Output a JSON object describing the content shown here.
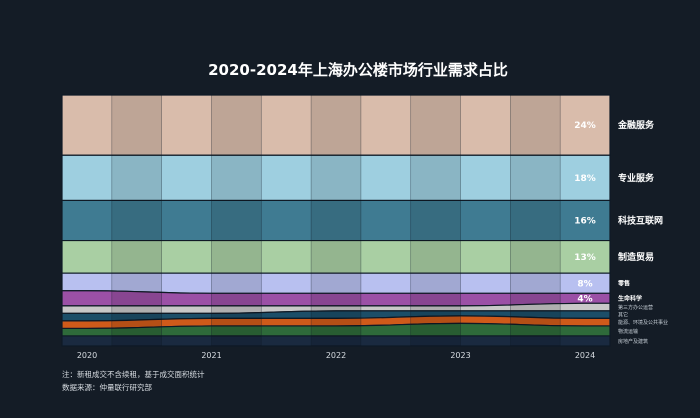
{
  "chart_data": {
    "type": "area",
    "title": "2020-2024年上海办公楼市场行业需求占比",
    "x": [
      "2020",
      "2021",
      "2022",
      "2023",
      "2024"
    ],
    "ylim": [
      0,
      100
    ],
    "series": [
      {
        "name": "金融服务",
        "color": "#d9bcab",
        "color_alt": "#b8a190",
        "values": [
          24,
          24,
          24,
          24,
          24
        ],
        "label": "24%"
      },
      {
        "name": "专业服务",
        "color": "#9ecfe0",
        "color_alt": "#4d7a90",
        "values": [
          18,
          18,
          18,
          18,
          18
        ],
        "label": "18%"
      },
      {
        "name": "科技互联网",
        "color": "#3f7b92",
        "color_alt": "#9ac6d8",
        "values": [
          16,
          16,
          16,
          16,
          16
        ],
        "label": "16%"
      },
      {
        "name": "制造贸易",
        "color": "#a9cfa3",
        "color_alt": "#8db58a",
        "values": [
          13,
          13,
          13,
          13,
          13
        ],
        "label": "13%"
      },
      {
        "name": "零售",
        "color": "#b8c0f0",
        "color_alt": "#9b50a6",
        "values": [
          7,
          8,
          8,
          8,
          8
        ],
        "label": "8%"
      },
      {
        "name": "生命科学",
        "color": "#9b50a6",
        "color_alt": "#b8c0f0",
        "values": [
          6,
          5,
          5,
          5,
          4
        ],
        "label": "4%"
      },
      {
        "name": "第三方办公运营",
        "color": "#c8c8c8",
        "color_alt": "#1c4e68",
        "values": [
          3,
          3,
          2,
          2,
          3
        ],
        "label": ""
      },
      {
        "name": "其它",
        "color": "#1c4e68",
        "color_alt": "#8a8a8a",
        "values": [
          3,
          2,
          3,
          2,
          3
        ],
        "label": ""
      },
      {
        "name": "能源、环境及公共事业",
        "color": "#cf5a1a",
        "color_alt": "#4e8a4a",
        "values": [
          3,
          3,
          3,
          3,
          3
        ],
        "label": ""
      },
      {
        "name": "物流运输",
        "color": "#2e6a3a",
        "color_alt": "#cf5a1a",
        "values": [
          3,
          4,
          4,
          5,
          4
        ],
        "label": ""
      },
      {
        "name": "房地产及建筑",
        "color": "#1a2a40",
        "color_alt": "#cf5a1a",
        "values": [
          4,
          4,
          4,
          4,
          4
        ],
        "label": ""
      }
    ],
    "legend_placement": "right",
    "notes": [
      "注：新租成交不含续租，基于成交面积统计",
      "数据来源：仲量联行研究部"
    ]
  }
}
